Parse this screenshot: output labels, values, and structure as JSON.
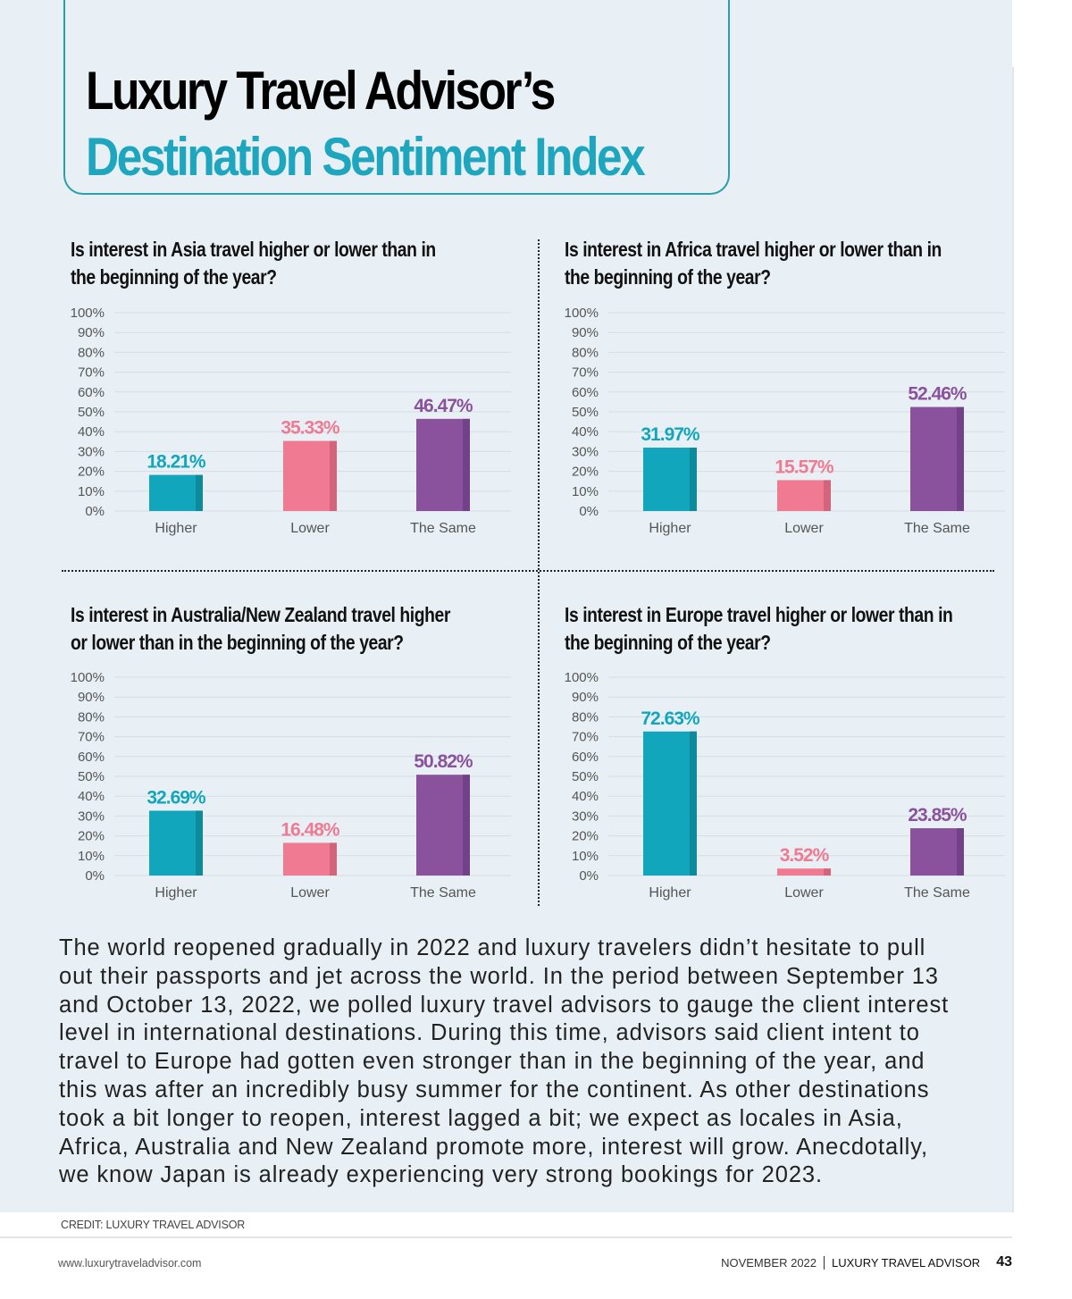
{
  "header": {
    "title_line1": "Luxury Travel Advisor’s",
    "title_line2": "Destination Sentiment Index"
  },
  "colors": {
    "higher": "#12a6bd",
    "higher_shade": "#0e8a9d",
    "lower": "#ef7a92",
    "lower_shade": "#d3647c",
    "same": "#8a529c",
    "same_shade": "#73408a",
    "title_accent": "#1ea6bf",
    "border": "#2a9fae",
    "grid": "#d6dee3"
  },
  "chart_data": [
    {
      "type": "bar",
      "title": "Is interest in Asia travel higher or lower than in the beginning of the year?",
      "title_lines": [
        "Is interest in Asia travel higher or lower than in",
        "the beginning of the year?"
      ],
      "categories": [
        "Higher",
        "Lower",
        "The Same"
      ],
      "values": [
        18.21,
        35.33,
        46.47
      ],
      "data_labels": [
        "18.21%",
        "35.33%",
        "46.47%"
      ],
      "xlabel": "",
      "ylabel": "",
      "ylim": [
        0,
        100
      ],
      "yticks": [
        "0%",
        "10%",
        "20%",
        "30%",
        "40%",
        "50%",
        "60%",
        "70%",
        "80%",
        "90%",
        "100%"
      ],
      "grid": true
    },
    {
      "type": "bar",
      "title": "Is interest in Africa travel higher or lower than in the beginning of the year?",
      "title_lines": [
        "Is interest in Africa travel higher or lower than in",
        "the beginning of the year?"
      ],
      "categories": [
        "Higher",
        "Lower",
        "The Same"
      ],
      "values": [
        31.97,
        15.57,
        52.46
      ],
      "data_labels": [
        "31.97%",
        "15.57%",
        "52.46%"
      ],
      "xlabel": "",
      "ylabel": "",
      "ylim": [
        0,
        100
      ],
      "yticks": [
        "0%",
        "10%",
        "20%",
        "30%",
        "40%",
        "50%",
        "60%",
        "70%",
        "80%",
        "90%",
        "100%"
      ],
      "grid": true
    },
    {
      "type": "bar",
      "title": "Is interest in Australia/New Zealand travel higher or lower than in the beginning of the year?",
      "title_lines": [
        "Is interest in Australia/New Zealand travel higher",
        "or lower than in the beginning of the year?"
      ],
      "categories": [
        "Higher",
        "Lower",
        "The Same"
      ],
      "values": [
        32.69,
        16.48,
        50.82
      ],
      "data_labels": [
        "32.69%",
        "16.48%",
        "50.82%"
      ],
      "xlabel": "",
      "ylabel": "",
      "ylim": [
        0,
        100
      ],
      "yticks": [
        "0%",
        "10%",
        "20%",
        "30%",
        "40%",
        "50%",
        "60%",
        "70%",
        "80%",
        "90%",
        "100%"
      ],
      "grid": true
    },
    {
      "type": "bar",
      "title": "Is interest in Europe travel higher or lower than in the beginning of the year?",
      "title_lines": [
        "Is interest in Europe travel higher or lower than in",
        "the beginning of the year?"
      ],
      "categories": [
        "Higher",
        "Lower",
        "The Same"
      ],
      "values": [
        72.63,
        3.52,
        23.85
      ],
      "data_labels": [
        "72.63%",
        "3.52%",
        "23.85%"
      ],
      "xlabel": "",
      "ylabel": "",
      "ylim": [
        0,
        100
      ],
      "yticks": [
        "0%",
        "10%",
        "20%",
        "30%",
        "40%",
        "50%",
        "60%",
        "70%",
        "80%",
        "90%",
        "100%"
      ],
      "grid": true
    }
  ],
  "body": {
    "lines": [
      "The world reopened gradually in 2022 and luxury travelers didn’t hesitate to pull",
      "out their passports and jet across the world. In the period between September 13",
      "and October 13, 2022, we polled luxury travel advisors to gauge the client interest",
      "level in international destinations. During this time, advisors said client intent to",
      "travel to Europe had gotten even stronger than in the beginning of the year, and",
      "this was after an incredibly busy summer for the continent. As other destinations",
      "took a bit longer to reopen, interest lagged a bit; we expect as locales in Asia,",
      "Africa, Australia and New Zealand promote more, interest will grow. Anecdotally,",
      "we know Japan is already experiencing very strong bookings for 2023."
    ]
  },
  "credit": "CREDIT: LUXURY TRAVEL ADVISOR",
  "footer": {
    "url": "www.luxurytraveladvisor.com",
    "issue": "NOVEMBER 2022",
    "magazine": "LUXURY TRAVEL ADVISOR",
    "page_number": "43"
  }
}
